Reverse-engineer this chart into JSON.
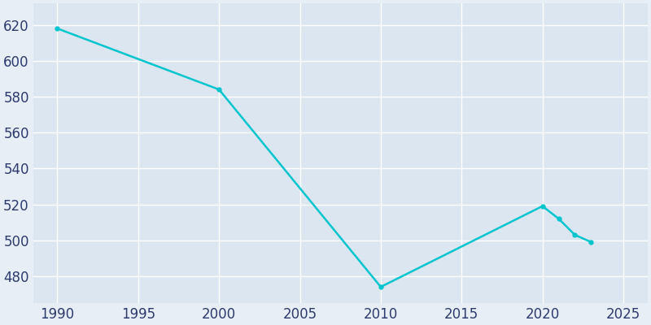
{
  "years": [
    1990,
    2000,
    2010,
    2020,
    2021,
    2022,
    2023
  ],
  "population": [
    618,
    584,
    474,
    519,
    512,
    503,
    499
  ],
  "line_color": "#00c5cd",
  "marker_color": "#00c5cd",
  "bg_color": "#e8eef5",
  "plot_bg_color": "#dce6f0",
  "grid_color": "#ffffff",
  "xlabel": "",
  "ylabel": "",
  "xlim": [
    1988.5,
    2026.5
  ],
  "ylim": [
    465,
    632
  ],
  "yticks": [
    480,
    500,
    520,
    540,
    560,
    580,
    600,
    620
  ],
  "xticks": [
    1990,
    1995,
    2000,
    2005,
    2010,
    2015,
    2020,
    2025
  ],
  "tick_label_color": "#2d3a6e",
  "tick_label_size": 12
}
